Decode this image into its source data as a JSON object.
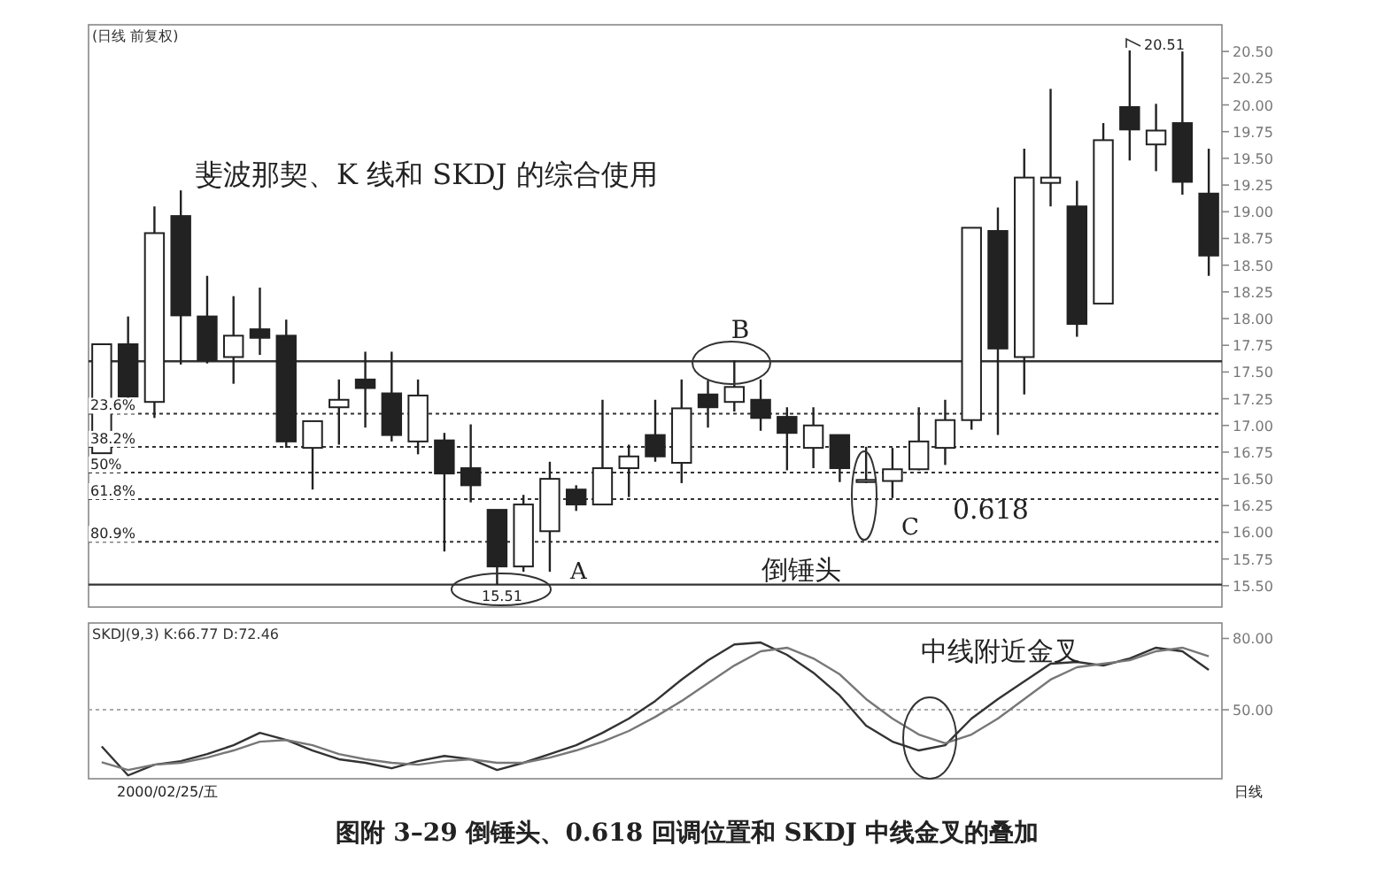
{
  "chart_data": [
    {
      "type": "candlestick",
      "title": "(日线 前复权)",
      "categories": [
        null,
        null,
        null,
        null,
        null,
        null,
        null,
        null,
        null,
        null,
        null,
        null,
        null,
        null,
        null,
        null,
        null,
        null,
        null,
        null,
        null,
        null,
        null,
        null,
        null,
        null,
        null,
        null,
        null,
        null,
        null,
        null,
        null,
        null,
        null,
        null,
        null,
        null,
        null,
        null,
        null,
        null,
        null
      ],
      "ohlc": [
        [
          16.74,
          17.76,
          16.74,
          17.76
        ],
        [
          17.76,
          18.02,
          17.23,
          17.27
        ],
        [
          17.22,
          19.05,
          17.07,
          18.8
        ],
        [
          18.96,
          19.2,
          17.57,
          18.03
        ],
        [
          18.02,
          18.4,
          17.58,
          17.61
        ],
        [
          17.64,
          18.21,
          17.39,
          17.84
        ],
        [
          17.9,
          18.29,
          17.66,
          17.82
        ],
        [
          17.84,
          17.99,
          16.79,
          16.85
        ],
        [
          16.79,
          17.04,
          16.4,
          17.04
        ],
        [
          17.17,
          17.43,
          16.82,
          17.24
        ],
        [
          17.43,
          17.69,
          16.98,
          17.35
        ],
        [
          17.3,
          17.69,
          16.85,
          16.91
        ],
        [
          16.85,
          17.43,
          16.73,
          17.28
        ],
        [
          16.86,
          16.93,
          15.82,
          16.55
        ],
        [
          16.6,
          17.01,
          16.28,
          16.44
        ],
        [
          16.21,
          16.21,
          15.51,
          15.68
        ],
        [
          15.68,
          16.35,
          15.63,
          16.26
        ],
        [
          16.01,
          16.66,
          15.63,
          16.5
        ],
        [
          16.4,
          16.44,
          16.2,
          16.26
        ],
        [
          16.26,
          17.24,
          16.26,
          16.6
        ],
        [
          16.6,
          16.82,
          16.33,
          16.71
        ],
        [
          16.91,
          17.24,
          16.66,
          16.71
        ],
        [
          16.65,
          17.43,
          16.46,
          17.16
        ],
        [
          17.29,
          17.42,
          16.98,
          17.17
        ],
        [
          17.22,
          17.61,
          17.13,
          17.36
        ],
        [
          17.24,
          17.43,
          16.95,
          17.07
        ],
        [
          17.08,
          17.17,
          16.58,
          16.93
        ],
        [
          16.79,
          17.17,
          16.6,
          17.0
        ],
        [
          16.91,
          16.91,
          16.47,
          16.6
        ],
        [
          16.47,
          16.8,
          16.46,
          16.49
        ],
        [
          16.48,
          16.79,
          16.32,
          16.59
        ],
        [
          16.59,
          17.17,
          16.58,
          16.85
        ],
        [
          16.79,
          17.24,
          16.63,
          17.05
        ],
        [
          17.05,
          18.85,
          16.96,
          18.85
        ],
        [
          18.82,
          19.04,
          16.91,
          17.72
        ],
        [
          17.64,
          19.59,
          17.29,
          19.32
        ],
        [
          19.27,
          20.15,
          19.05,
          19.32
        ],
        [
          19.05,
          19.29,
          17.83,
          17.95
        ],
        [
          18.14,
          19.83,
          18.14,
          19.67
        ],
        [
          19.98,
          20.51,
          19.48,
          19.77
        ],
        [
          19.63,
          20.01,
          19.38,
          19.76
        ],
        [
          19.83,
          20.5,
          19.16,
          19.28
        ],
        [
          19.17,
          19.59,
          18.4,
          18.59
        ]
      ],
      "ylim": [
        15.3,
        20.75
      ],
      "yticks": [
        {
          "value": 15.5,
          "label": "15.50"
        },
        {
          "value": 15.75,
          "label": "15.75"
        },
        {
          "value": 16,
          "label": "16.00"
        },
        {
          "value": 16.25,
          "label": "16.25"
        },
        {
          "value": 16.5,
          "label": "16.50"
        },
        {
          "value": 16.75,
          "label": "16.75"
        },
        {
          "value": 17,
          "label": "17.00"
        },
        {
          "value": 17.25,
          "label": "17.25"
        },
        {
          "value": 17.5,
          "label": "17.50"
        },
        {
          "value": 17.75,
          "label": "17.75"
        },
        {
          "value": 18,
          "label": "18.00"
        },
        {
          "value": 18.25,
          "label": "18.25"
        },
        {
          "value": 18.5,
          "label": "18.50"
        },
        {
          "value": 18.75,
          "label": "18.75"
        },
        {
          "value": 19,
          "label": "19.00"
        },
        {
          "value": 19.25,
          "label": "19.25"
        },
        {
          "value": 19.5,
          "label": "19.50"
        },
        {
          "value": 19.75,
          "label": "19.75"
        },
        {
          "value": 20,
          "label": "20.00"
        },
        {
          "value": 20.25,
          "label": "20.25"
        },
        {
          "value": 20.5,
          "label": "20.50"
        }
      ],
      "ref_lines": [
        {
          "axis": "y",
          "value": 17.6,
          "line_style": "solid",
          "color": "#333333"
        },
        {
          "axis": "y",
          "value": 17.11,
          "line_style": "dotted",
          "color": "#333333"
        },
        {
          "axis": "y",
          "value": 16.8,
          "line_style": "dotted",
          "color": "#333333"
        },
        {
          "axis": "y",
          "value": 16.56,
          "line_style": "dotted",
          "color": "#333333"
        },
        {
          "axis": "y",
          "value": 16.31,
          "line_style": "dotted",
          "color": "#333333"
        },
        {
          "axis": "y",
          "value": 15.91,
          "line_style": "dotted",
          "color": "#333333"
        },
        {
          "axis": "y",
          "value": 15.51,
          "line_style": "solid",
          "color": "#333333"
        }
      ],
      "annotations": [
        "斐波那契、K 线和 SKDJ 的综合使用",
        "B",
        "A",
        "C",
        "0.618",
        "倒锤头",
        {
          "text": "15.51",
          "y": 15.51
        },
        "20.51",
        "23.6%",
        "38.2%",
        "50%",
        "61.8%",
        "80.9%"
      ]
    },
    {
      "type": "line",
      "title": "SKDJ(9,3) K:66.77 D:72.46",
      "categories": [
        null,
        null,
        null,
        null,
        null,
        null,
        null,
        null,
        null,
        null,
        null,
        null,
        null,
        null,
        null,
        null,
        null,
        null,
        null,
        null,
        null,
        null,
        null,
        null,
        null,
        null,
        null,
        null,
        null,
        null,
        null,
        null,
        null,
        null,
        null,
        null,
        null,
        null,
        null,
        null,
        null,
        null,
        null
      ],
      "series": [
        {
          "color": "#333333",
          "values": [
            34.6,
            22.4,
            26.9,
            28.4,
            31.4,
            35.1,
            40.3,
            37.3,
            32.9,
            29.2,
            27.7,
            25.4,
            28.4,
            30.6,
            29.2,
            24.7,
            27.7,
            31.4,
            35.1,
            40.3,
            46.3,
            53.7,
            62.7,
            70.8,
            77.5,
            78.3,
            73.1,
            65.6,
            56.0,
            43.3,
            36.6,
            32.9,
            35.1,
            46.3,
            54.5,
            61.9,
            69.4,
            70.1,
            68.6,
            71.6,
            76.1,
            74.6,
            66.8
          ]
        },
        {
          "color": "#777777",
          "values": [
            27.9,
            24.7,
            26.9,
            27.7,
            29.9,
            32.9,
            36.6,
            37.3,
            35.1,
            31.4,
            29.2,
            27.7,
            26.9,
            28.4,
            29.2,
            27.7,
            27.7,
            29.9,
            32.9,
            36.6,
            41.1,
            47.0,
            53.7,
            61.2,
            68.6,
            74.6,
            76.1,
            71.6,
            64.9,
            54.5,
            46.3,
            39.6,
            35.9,
            39.6,
            46.3,
            54.5,
            62.7,
            67.9,
            69.4,
            70.8,
            74.6,
            76.1,
            72.5
          ]
        }
      ],
      "ylim": [
        21,
        86.5
      ],
      "yticks": [
        {
          "value": 50,
          "label": "50.00"
        },
        {
          "value": 80,
          "label": "80.00"
        }
      ],
      "ref_lines": [
        {
          "axis": "y",
          "value": 50,
          "line_style": "dotted",
          "color": "#aaaaaa"
        }
      ],
      "annotations": [
        "中线附近金叉",
        "2000/02/25/五",
        "日线",
        "图附 3–29 倒锤头、0.618 回调位置和 SKDJ 中线金叉的叠加"
      ]
    }
  ]
}
